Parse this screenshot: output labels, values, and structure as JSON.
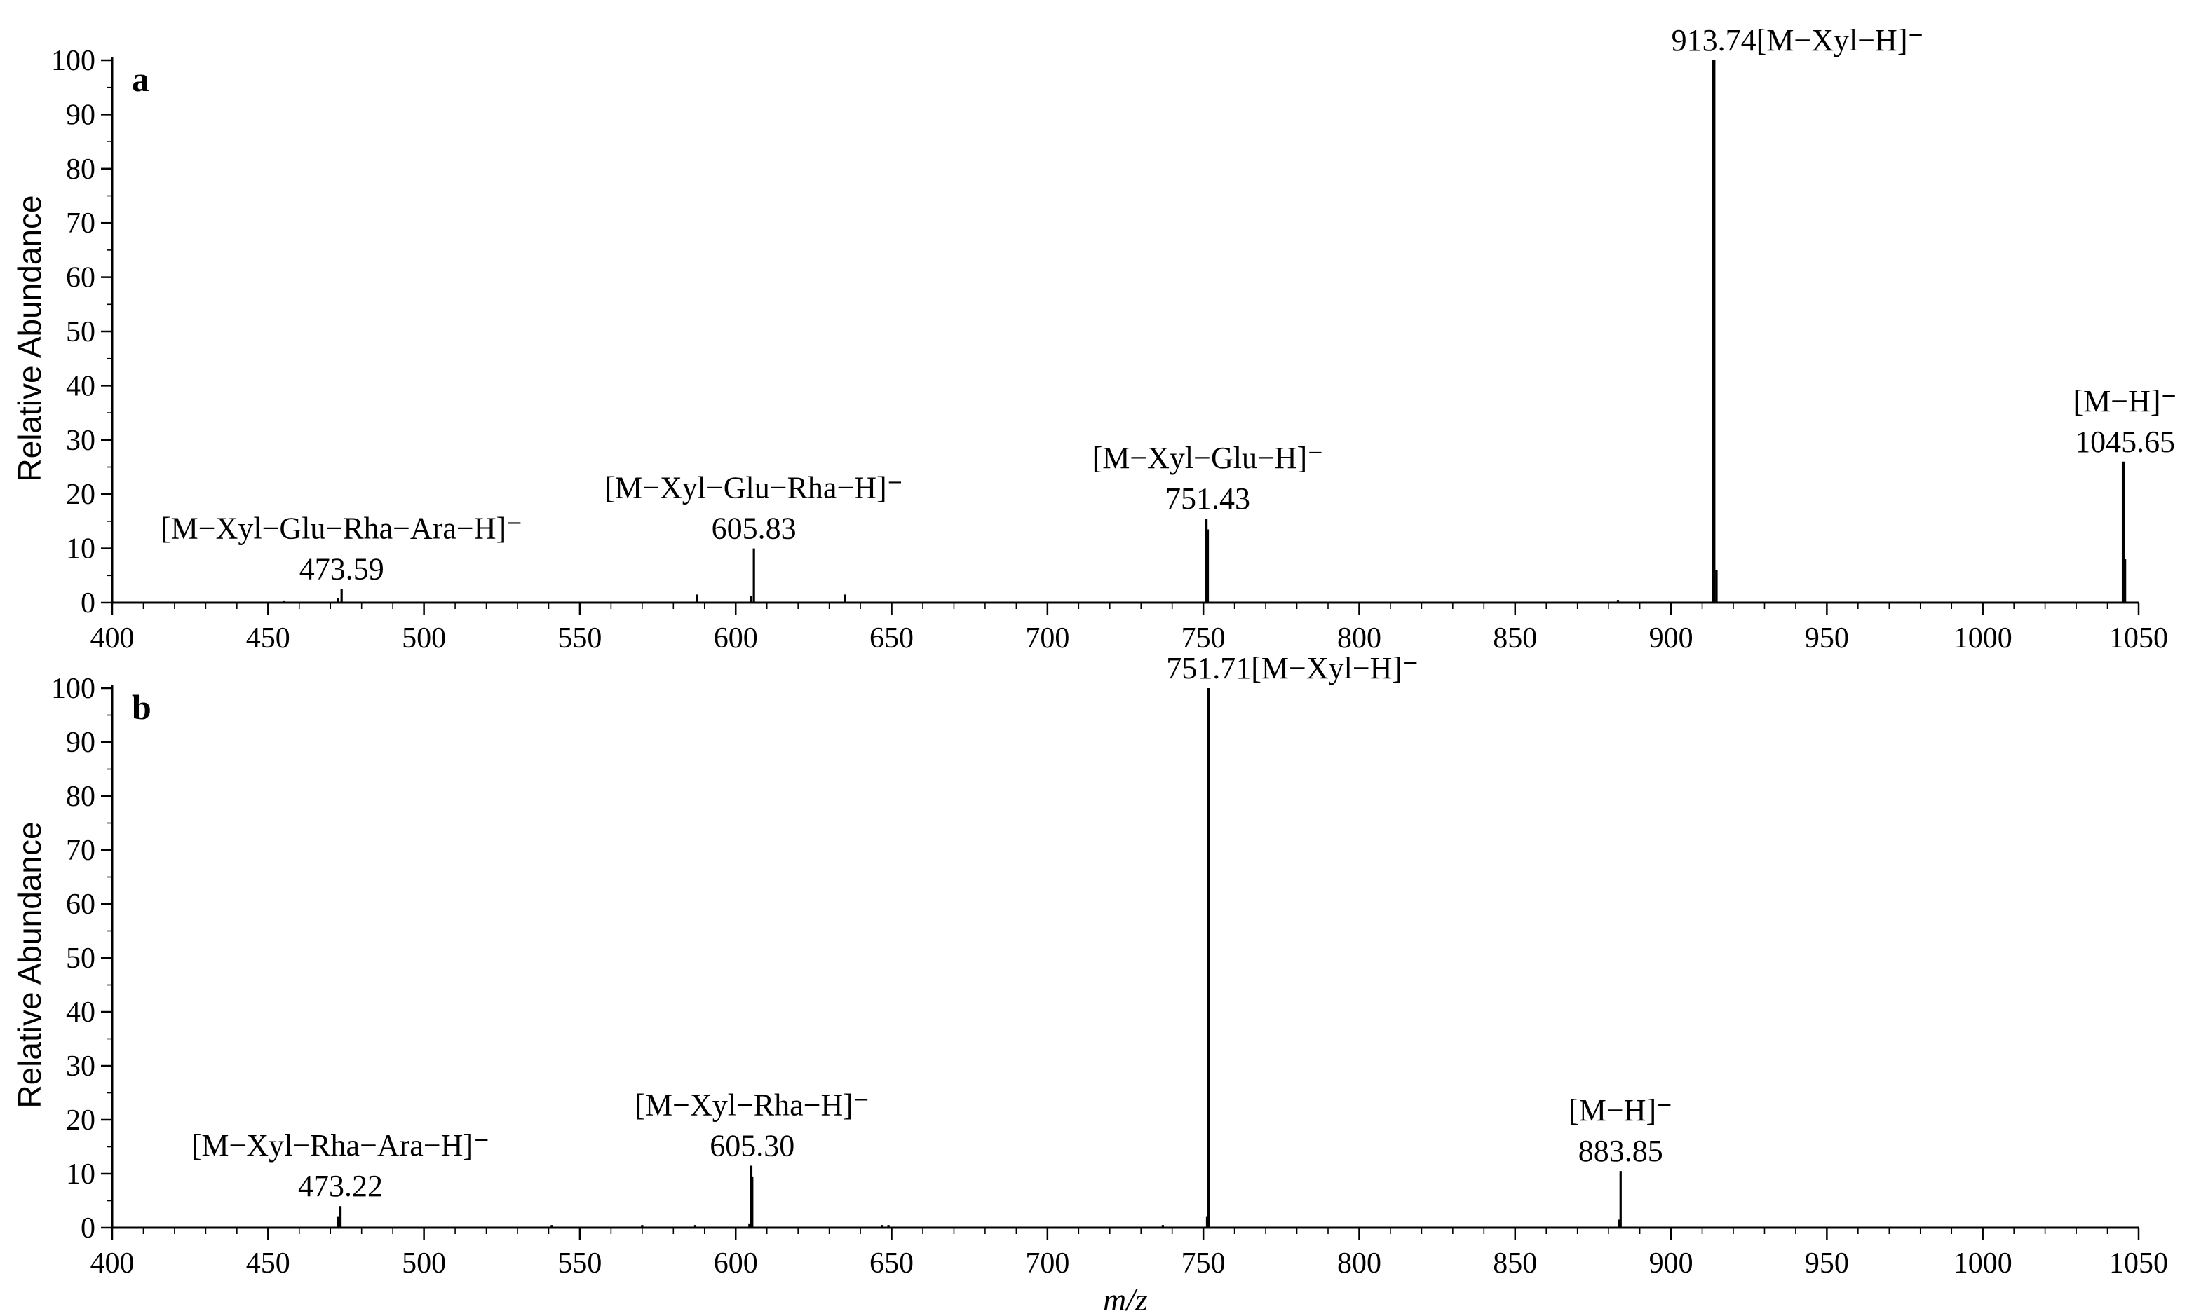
{
  "chart_data": [
    {
      "type": "bar",
      "panel_label": "a",
      "ylabel": "Relative Abundance",
      "xlabel": "",
      "xlim": [
        400,
        1050
      ],
      "ylim": [
        0,
        100
      ],
      "x_ticks": [
        400,
        450,
        500,
        550,
        600,
        650,
        700,
        750,
        800,
        850,
        900,
        950,
        1000,
        1050
      ],
      "y_ticks": [
        0,
        10,
        20,
        30,
        40,
        50,
        60,
        70,
        80,
        90,
        100
      ],
      "peaks": [
        {
          "mz": 455.0,
          "intensity": 0.4
        },
        {
          "mz": 472.5,
          "intensity": 0.8
        },
        {
          "mz": 473.59,
          "intensity": 2.5
        },
        {
          "mz": 587.5,
          "intensity": 1.5
        },
        {
          "mz": 605.0,
          "intensity": 1.2
        },
        {
          "mz": 605.83,
          "intensity": 10
        },
        {
          "mz": 635.0,
          "intensity": 1.5
        },
        {
          "mz": 751.0,
          "intensity": 15.5
        },
        {
          "mz": 751.43,
          "intensity": 13.5
        },
        {
          "mz": 883.0,
          "intensity": 0.5
        },
        {
          "mz": 913.74,
          "intensity": 100
        },
        {
          "mz": 914.6,
          "intensity": 6
        },
        {
          "mz": 1045.1,
          "intensity": 26
        },
        {
          "mz": 1045.65,
          "intensity": 8
        }
      ],
      "annotations": [
        {
          "mz": 473.59,
          "label": "[M−Xyl−Glu−Rha−Ara−H]⁻",
          "value": "473.59"
        },
        {
          "mz": 605.83,
          "label": "[M−Xyl−Glu−Rha−H]⁻",
          "value": "605.83"
        },
        {
          "mz": 751.43,
          "label": "[M−Xyl−Glu−H]⁻",
          "value": "751.43"
        },
        {
          "mz": 913.74,
          "label": "[M−Xyl−H]⁻",
          "value": "913.74",
          "inline": true
        },
        {
          "mz": 1045.65,
          "label": "[M−H]⁻",
          "value": "1045.65"
        }
      ]
    },
    {
      "type": "bar",
      "panel_label": "b",
      "ylabel": "Relative Abundance",
      "xlabel": "m/z",
      "xlim": [
        400,
        1050
      ],
      "ylim": [
        0,
        100
      ],
      "x_ticks": [
        400,
        450,
        500,
        550,
        600,
        650,
        700,
        750,
        800,
        850,
        900,
        950,
        1000,
        1050
      ],
      "y_ticks": [
        0,
        10,
        20,
        30,
        40,
        50,
        60,
        70,
        80,
        90,
        100
      ],
      "peaks": [
        {
          "mz": 472.4,
          "intensity": 2
        },
        {
          "mz": 473.22,
          "intensity": 4
        },
        {
          "mz": 541.0,
          "intensity": 0.5
        },
        {
          "mz": 570.0,
          "intensity": 0.5
        },
        {
          "mz": 587.0,
          "intensity": 0.5
        },
        {
          "mz": 604.4,
          "intensity": 0.8
        },
        {
          "mz": 605.0,
          "intensity": 11.5
        },
        {
          "mz": 605.3,
          "intensity": 9.5
        },
        {
          "mz": 647.0,
          "intensity": 0.5
        },
        {
          "mz": 649.0,
          "intensity": 0.5
        },
        {
          "mz": 737.0,
          "intensity": 0.5
        },
        {
          "mz": 751.2,
          "intensity": 2
        },
        {
          "mz": 751.71,
          "intensity": 100
        },
        {
          "mz": 883.3,
          "intensity": 1.5
        },
        {
          "mz": 883.85,
          "intensity": 10.5
        }
      ],
      "annotations": [
        {
          "mz": 473.22,
          "label": "[M−Xyl−Rha−Ara−H]⁻",
          "value": "473.22"
        },
        {
          "mz": 605.3,
          "label": "[M−Xyl−Rha−H]⁻",
          "value": "605.30"
        },
        {
          "mz": 751.71,
          "label": "[M−Xyl−H]⁻",
          "value": "751.71",
          "inline": true
        },
        {
          "mz": 883.85,
          "label": "[M−H]⁻",
          "value": "883.85"
        }
      ]
    }
  ]
}
